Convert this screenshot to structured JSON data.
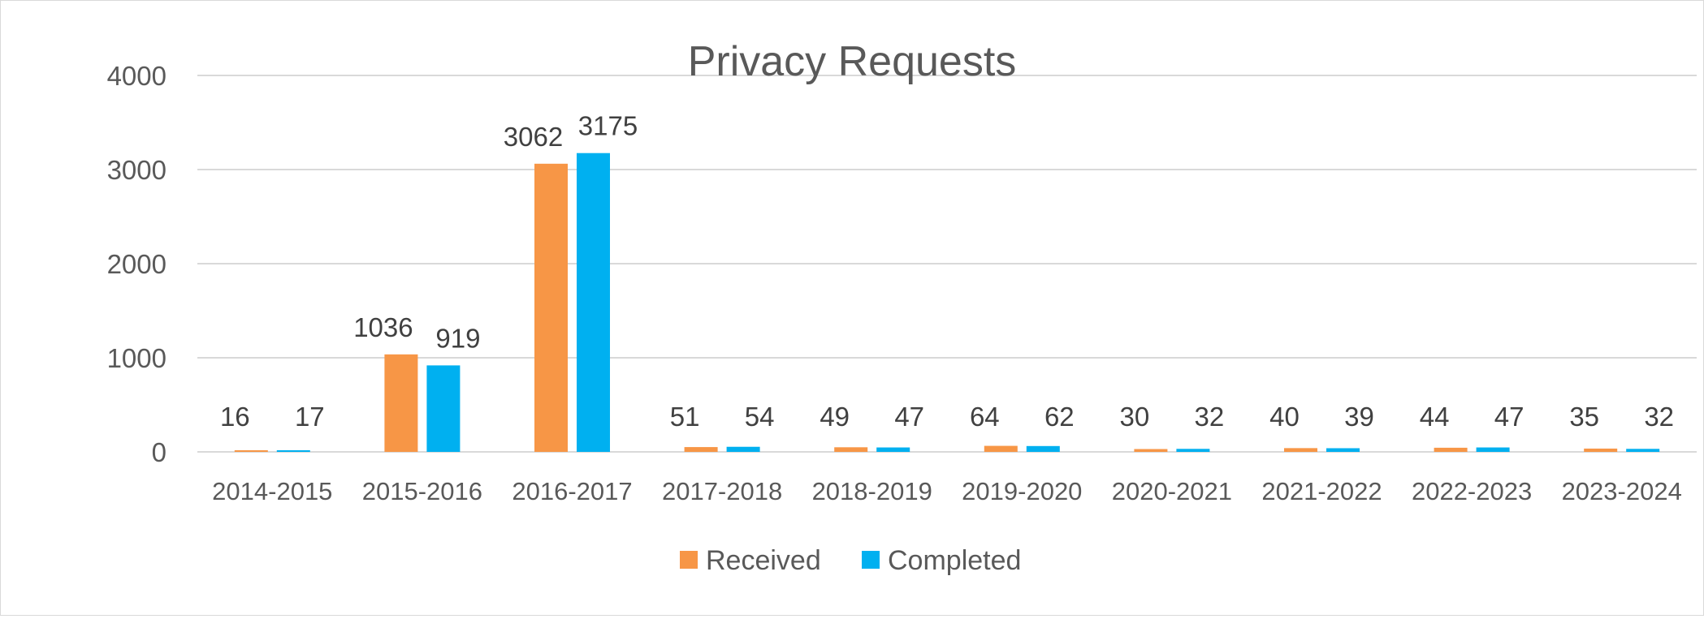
{
  "chart_data": {
    "type": "bar",
    "title": "Privacy Requests",
    "xlabel": "",
    "ylabel": "",
    "categories": [
      "2014-2015",
      "2015-2016",
      "2016-2017",
      "2017-2018",
      "2018-2019",
      "2019-2020",
      "2020-2021",
      "2021-2022",
      "2022-2023",
      "2023-2024"
    ],
    "series": [
      {
        "name": "Received",
        "values": [
          16,
          1036,
          3062,
          51,
          49,
          64,
          30,
          40,
          44,
          35
        ],
        "color": "#F79646"
      },
      {
        "name": "Completed",
        "values": [
          17,
          919,
          3175,
          54,
          47,
          62,
          32,
          39,
          47,
          32
        ],
        "color": "#00B0F0"
      }
    ],
    "ylim": [
      0,
      4000
    ],
    "yticks": [
      0,
      1000,
      2000,
      3000,
      4000
    ],
    "grid": true,
    "legend_position": "bottom",
    "data_labels": true
  }
}
